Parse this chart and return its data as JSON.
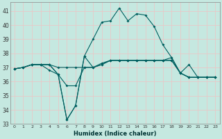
{
  "xlabel": "Humidex (Indice chaleur)",
  "background_color": "#c5e8e0",
  "grid_color": "#e8c8c8",
  "line_color": "#006060",
  "xlim": [
    -0.5,
    23.5
  ],
  "ylim": [
    33,
    41.6
  ],
  "yticks": [
    33,
    34,
    35,
    36,
    37,
    38,
    39,
    40,
    41
  ],
  "xticks": [
    0,
    1,
    2,
    3,
    4,
    5,
    6,
    7,
    8,
    9,
    10,
    11,
    12,
    13,
    14,
    15,
    16,
    17,
    18,
    19,
    20,
    21,
    22,
    23
  ],
  "series": [
    {
      "x": [
        0,
        1,
        2,
        3,
        4,
        5,
        6,
        7,
        8,
        9,
        10,
        11,
        12,
        13,
        14,
        15,
        16,
        17,
        18,
        19,
        20,
        21,
        22,
        23
      ],
      "y": [
        36.9,
        37.0,
        37.2,
        37.2,
        37.2,
        37.0,
        37.0,
        37.0,
        37.0,
        37.0,
        37.3,
        37.5,
        37.5,
        37.5,
        37.5,
        37.5,
        37.5,
        37.5,
        37.5,
        36.6,
        36.3,
        36.3,
        36.3,
        36.3
      ],
      "marker": "D",
      "markersize": 2.0,
      "lw": 0.8
    },
    {
      "x": [
        0,
        1,
        2,
        3,
        4,
        5,
        6,
        7,
        8,
        9,
        10,
        11,
        12,
        13,
        14,
        15,
        16,
        17,
        18,
        19,
        20,
        21,
        22,
        23
      ],
      "y": [
        36.9,
        37.0,
        37.2,
        37.2,
        37.2,
        36.5,
        33.3,
        34.3,
        37.8,
        39.0,
        40.2,
        40.3,
        41.2,
        40.3,
        40.8,
        40.7,
        39.9,
        38.6,
        37.7,
        36.6,
        37.2,
        36.3,
        36.3,
        36.3
      ],
      "marker": "D",
      "markersize": 2.0,
      "lw": 0.8
    },
    {
      "x": [
        0,
        1,
        2,
        3,
        4,
        5,
        6,
        7,
        8,
        9,
        10,
        11,
        12,
        13,
        14,
        15,
        16,
        17,
        18,
        19,
        20,
        21,
        22,
        23
      ],
      "y": [
        36.9,
        37.0,
        37.2,
        37.2,
        36.8,
        36.5,
        35.7,
        35.7,
        37.0,
        37.0,
        37.2,
        37.5,
        37.5,
        37.5,
        37.5,
        37.5,
        37.5,
        37.5,
        37.5,
        36.6,
        36.3,
        36.3,
        36.3,
        36.3
      ],
      "marker": "D",
      "markersize": 2.0,
      "lw": 0.8
    },
    {
      "x": [
        0,
        1,
        2,
        3,
        4,
        5,
        6,
        7,
        8,
        9,
        10,
        11,
        12,
        13,
        14,
        15,
        16,
        17,
        18,
        19,
        20,
        21,
        22,
        23
      ],
      "y": [
        36.9,
        37.0,
        37.2,
        37.2,
        37.2,
        36.5,
        33.3,
        34.3,
        37.8,
        37.0,
        37.2,
        37.5,
        37.5,
        37.5,
        37.5,
        37.5,
        37.5,
        37.5,
        37.7,
        36.6,
        36.3,
        36.3,
        36.3,
        36.3
      ],
      "marker": "D",
      "markersize": 2.0,
      "lw": 0.8
    }
  ]
}
